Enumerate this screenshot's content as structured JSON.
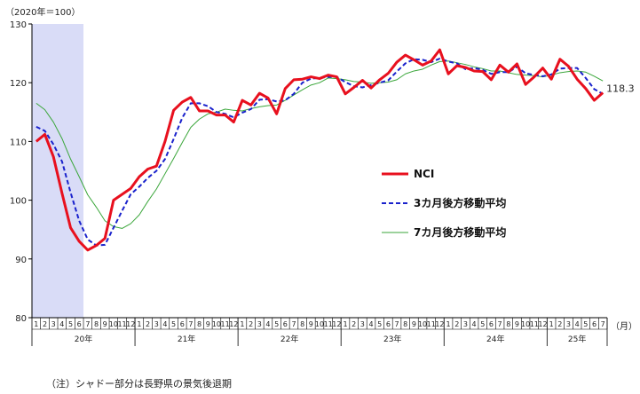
{
  "chart_data": {
    "type": "line",
    "unit_label": "（2020年＝100）",
    "month_unit": "（月）",
    "ylim": [
      80,
      130
    ],
    "yticks": [
      80,
      90,
      100,
      110,
      120,
      130
    ],
    "grid": false,
    "legend_position": "center-right",
    "shade": {
      "from_index": 0,
      "to_index": 5,
      "color": "#d9dcf7"
    },
    "x_months": [
      "1",
      "2",
      "3",
      "4",
      "5",
      "6",
      "7",
      "8",
      "9",
      "10",
      "11",
      "12",
      "1",
      "2",
      "3",
      "4",
      "5",
      "6",
      "7",
      "8",
      "9",
      "10",
      "11",
      "12",
      "1",
      "2",
      "3",
      "4",
      "5",
      "6",
      "7",
      "8",
      "9",
      "10",
      "11",
      "12",
      "1",
      "2",
      "3",
      "4",
      "5",
      "6",
      "7",
      "8",
      "9",
      "10",
      "11",
      "12",
      "1",
      "2",
      "3",
      "4",
      "5",
      "6",
      "7",
      "8",
      "9",
      "10",
      "11",
      "12",
      "1",
      "2",
      "3",
      "4",
      "5",
      "6",
      "7"
    ],
    "x_years": [
      {
        "label": "20年",
        "start": 0,
        "count": 12
      },
      {
        "label": "21年",
        "start": 12,
        "count": 12
      },
      {
        "label": "22年",
        "start": 24,
        "count": 12
      },
      {
        "label": "23年",
        "start": 36,
        "count": 12
      },
      {
        "label": "24年",
        "start": 48,
        "count": 12
      },
      {
        "label": "25年",
        "start": 60,
        "count": 7
      }
    ],
    "last_value_label": "118.3",
    "series": [
      {
        "name": "NCI",
        "color": "#e8101e",
        "style": "solid-thick",
        "values": [
          110.0,
          111.2,
          107.4,
          101.2,
          95.3,
          93.0,
          91.5,
          92.3,
          93.5,
          100.0,
          101.0,
          102.0,
          104.0,
          105.3,
          105.8,
          110.0,
          115.3,
          116.7,
          117.5,
          115.2,
          115.2,
          114.5,
          114.5,
          113.3,
          117.0,
          116.2,
          118.2,
          117.4,
          114.7,
          119.0,
          120.5,
          120.6,
          121.0,
          120.7,
          121.3,
          121.0,
          118.1,
          119.2,
          120.4,
          119.1,
          120.5,
          121.6,
          123.5,
          124.7,
          123.9,
          123.0,
          123.7,
          125.6,
          121.5,
          122.9,
          122.6,
          122.0,
          121.9,
          120.5,
          123.0,
          121.8,
          123.2,
          119.7,
          121.0,
          122.5,
          120.6,
          124.0,
          122.8,
          120.6,
          119.0,
          117.0,
          118.3
        ]
      },
      {
        "name": "3カ月後方移動平均",
        "color": "#1a22cc",
        "style": "dashed",
        "values": [
          112.5,
          111.8,
          109.5,
          106.6,
          101.3,
          96.5,
          93.3,
          92.3,
          92.4,
          95.3,
          98.2,
          101.0,
          102.3,
          103.8,
          105.0,
          107.0,
          110.4,
          114.0,
          116.5,
          116.5,
          116.0,
          115.0,
          114.7,
          114.1,
          114.9,
          115.5,
          117.1,
          117.2,
          116.8,
          117.0,
          118.1,
          120.0,
          120.7,
          120.8,
          121.0,
          121.0,
          120.1,
          119.4,
          119.2,
          119.6,
          120.0,
          120.4,
          121.9,
          123.3,
          124.0,
          123.9,
          123.5,
          124.1,
          123.6,
          123.3,
          122.3,
          122.5,
          122.2,
          121.5,
          121.8,
          121.8,
          122.7,
          121.6,
          121.3,
          121.1,
          121.4,
          122.4,
          122.5,
          122.5,
          120.8,
          118.9,
          118.1
        ]
      },
      {
        "name": "7カ月後方移動平均",
        "color": "#3aa63a",
        "style": "solid-thin",
        "values": [
          116.5,
          115.4,
          113.3,
          110.5,
          107.0,
          104.0,
          100.9,
          98.8,
          96.5,
          95.5,
          95.2,
          96.0,
          97.5,
          99.8,
          101.9,
          104.5,
          107.1,
          109.8,
          112.4,
          113.8,
          114.7,
          115.0,
          115.5,
          115.3,
          115.2,
          115.6,
          115.9,
          116.1,
          116.2,
          117.0,
          117.9,
          118.8,
          119.6,
          120.0,
          120.8,
          120.7,
          120.5,
          120.2,
          120.1,
          119.9,
          120.0,
          120.1,
          120.5,
          121.5,
          122.0,
          122.3,
          123.0,
          123.6,
          123.7,
          123.4,
          123.1,
          122.7,
          122.4,
          122.0,
          122.0,
          121.7,
          121.4,
          121.3,
          121.2,
          121.0,
          121.3,
          121.7,
          121.9,
          122.0,
          121.8,
          121.1,
          120.3
        ]
      }
    ]
  },
  "note": "（注）シャドー部分は長野県の景気後退期"
}
